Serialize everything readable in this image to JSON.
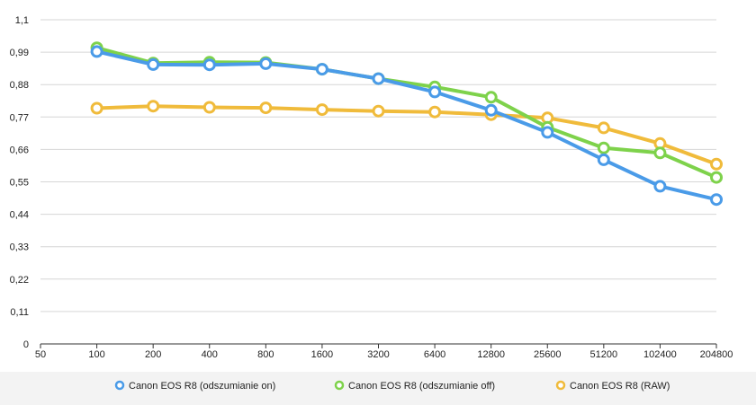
{
  "chart_data": {
    "type": "line",
    "title": "",
    "xlabel": "",
    "ylabel": "",
    "x_categories": [
      "50",
      "100",
      "200",
      "400",
      "800",
      "1600",
      "3200",
      "6400",
      "12800",
      "25600",
      "51200",
      "102400",
      "204800"
    ],
    "y_ticks": [
      "0",
      "0,11",
      "0,22",
      "0,33",
      "0,44",
      "0,55",
      "0,66",
      "0,77",
      "0,88",
      "0,99",
      "1,1"
    ],
    "ylim": [
      0,
      1.1
    ],
    "grid": true,
    "legend_position": "bottom",
    "series": [
      {
        "name": "Canon EOS R8 (odszumianie on)",
        "color": "#4a9be8",
        "values": [
          null,
          0.992,
          0.948,
          0.947,
          0.951,
          0.932,
          0.9,
          0.855,
          0.793,
          0.718,
          0.625,
          0.535,
          0.49
        ]
      },
      {
        "name": "Canon EOS R8 (odszumianie off)",
        "color": "#7ed24b",
        "values": [
          null,
          1.005,
          0.953,
          0.956,
          0.955,
          0.932,
          0.9,
          0.872,
          0.837,
          0.735,
          0.665,
          0.648,
          0.565
        ]
      },
      {
        "name": "Canon EOS R8 (RAW)",
        "color": "#f0bb3b",
        "values": [
          null,
          0.8,
          0.807,
          0.803,
          0.801,
          0.795,
          0.79,
          0.787,
          0.778,
          0.767,
          0.733,
          0.68,
          0.61
        ]
      }
    ]
  }
}
